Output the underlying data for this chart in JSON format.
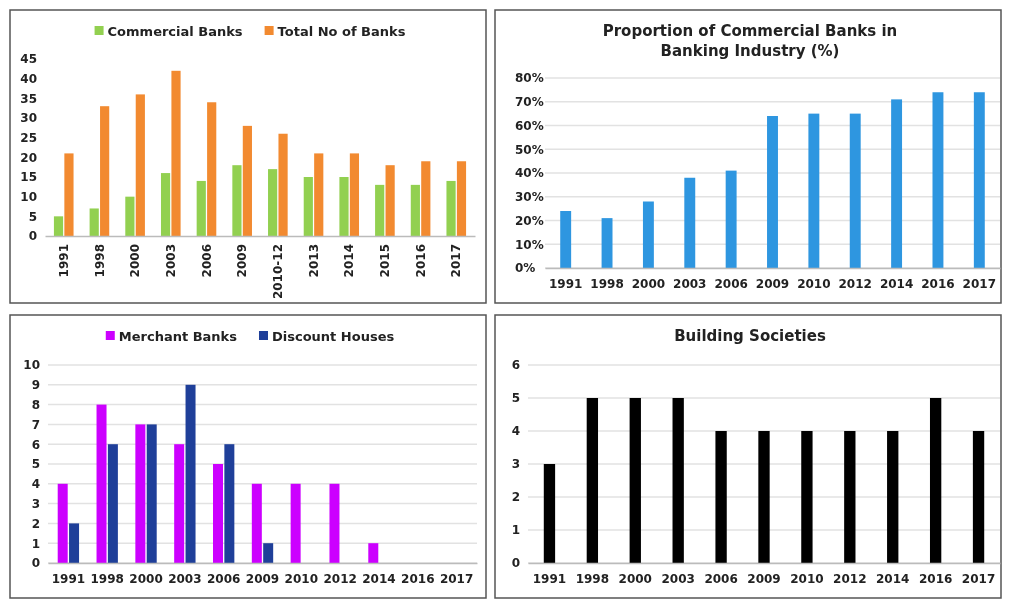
{
  "chart_data": [
    {
      "type": "bar",
      "categories": [
        "1991",
        "1998",
        "2000",
        "2003",
        "2006",
        "2009",
        "2010-12",
        "2013",
        "2014",
        "2015",
        "2016",
        "2017"
      ],
      "series": [
        {
          "name": "Commercial Banks",
          "color": "#92d050",
          "values": [
            5,
            7,
            10,
            16,
            14,
            18,
            17,
            15,
            15,
            13,
            13,
            14
          ]
        },
        {
          "name": "Total No of Banks",
          "color": "#f28a30",
          "values": [
            21,
            33,
            36,
            42,
            34,
            28,
            26,
            21,
            21,
            18,
            19,
            19
          ]
        }
      ],
      "ylim": [
        0,
        45
      ],
      "yticks": [
        0,
        5,
        10,
        15,
        20,
        25,
        30,
        35,
        40,
        45
      ],
      "grid": false,
      "legend": "top"
    },
    {
      "type": "bar",
      "title": "Proportion of Commercial Banks in Banking Industry  (%)",
      "categories": [
        "1991",
        "1998",
        "2000",
        "2003",
        "2006",
        "2009",
        "2010",
        "2012",
        "2014",
        "2016",
        "2017"
      ],
      "series": [
        {
          "color": "#2e96e0",
          "values": [
            24,
            21,
            28,
            38,
            41,
            64,
            65,
            65,
            71,
            74,
            74
          ]
        }
      ],
      "ylim": [
        0,
        80
      ],
      "yticks": [
        {
          "value": 0,
          "label": "0%"
        },
        {
          "value": 10,
          "label": "10%"
        },
        {
          "value": 20,
          "label": "20%"
        },
        {
          "value": 30,
          "label": "30%"
        },
        {
          "value": 40,
          "label": "40%"
        },
        {
          "value": 50,
          "label": "50%"
        },
        {
          "value": 60,
          "label": "60%"
        },
        {
          "value": 70,
          "label": "70%"
        },
        {
          "value": 80,
          "label": "80%"
        }
      ],
      "grid": true
    },
    {
      "type": "bar",
      "categories": [
        "1991",
        "1998",
        "2000",
        "2003",
        "2006",
        "2009",
        "2010",
        "2012",
        "2014",
        "2016",
        "2017"
      ],
      "series": [
        {
          "name": "Merchant Banks",
          "color": "#cc00ff",
          "values": [
            4,
            8,
            7,
            6,
            5,
            4,
            4,
            4,
            1,
            null,
            null
          ]
        },
        {
          "name": "Discount Houses",
          "color": "#1f3f99",
          "values": [
            2,
            6,
            7,
            9,
            6,
            1,
            null,
            null,
            null,
            null,
            null
          ]
        }
      ],
      "ylim": [
        0,
        10
      ],
      "yticks": [
        0,
        1,
        2,
        3,
        4,
        5,
        6,
        7,
        8,
        9,
        10
      ],
      "grid": true,
      "legend": "top"
    },
    {
      "type": "bar",
      "title": "Building Societies",
      "categories": [
        "1991",
        "1998",
        "2000",
        "2003",
        "2006",
        "2009",
        "2010",
        "2012",
        "2014",
        "2016",
        "2017"
      ],
      "series": [
        {
          "color": "#000000",
          "values": [
            3,
            5,
            5,
            5,
            4,
            4,
            4,
            4,
            4,
            5,
            4
          ]
        }
      ],
      "ylim": [
        0,
        6
      ],
      "yticks": [
        0,
        1,
        2,
        3,
        4,
        5,
        6
      ],
      "grid": true
    }
  ]
}
